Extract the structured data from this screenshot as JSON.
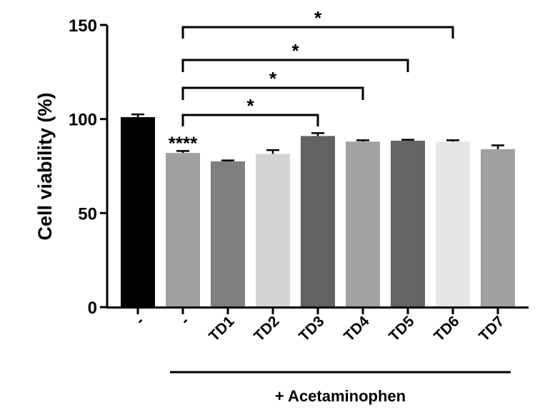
{
  "chart_data": {
    "type": "bar",
    "title": "",
    "xlabel": "",
    "ylabel": "Cell viability (%)",
    "ylim": [
      0,
      150
    ],
    "yticks": [
      0,
      50,
      100,
      150
    ],
    "categories": [
      "-",
      "-",
      "TD1",
      "TD2",
      "TD3",
      "TD4",
      "TD5",
      "TD6",
      "TD7"
    ],
    "values": [
      101,
      82,
      77.5,
      81.5,
      91,
      88,
      88.5,
      88,
      84
    ],
    "errors": [
      1.5,
      1.0,
      0.5,
      2.0,
      1.5,
      0.7,
      0.5,
      0.7,
      2.0
    ],
    "colors": [
      "#000000",
      "#a0a0a2",
      "#7f7f7f",
      "#d4d4d4",
      "#626262",
      "#a2a2a4",
      "#646464",
      "#e6e6e6",
      "#a0a0a2"
    ],
    "bar_annotations": [
      {
        "index": 1,
        "text": "****"
      }
    ],
    "significance": [
      {
        "from": 1,
        "to": 4,
        "label": "*"
      },
      {
        "from": 1,
        "to": 5,
        "label": "*"
      },
      {
        "from": 1,
        "to": 6,
        "label": "*"
      },
      {
        "from": 1,
        "to": 7,
        "label": "*"
      }
    ],
    "group": {
      "label": "+ Acetaminophen",
      "from": 1,
      "to": 8
    },
    "grid": false,
    "legend": "none"
  }
}
